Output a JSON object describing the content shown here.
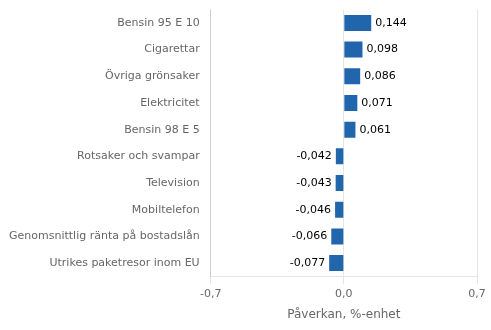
{
  "chart_data": {
    "type": "bar",
    "orientation": "horizontal",
    "categories": [
      "Utrikes paketresor inom EU",
      "Genomsnittlig ränta på bostadslån",
      "Mobiltelefon",
      "Television",
      "Rotsaker och svampar",
      "Bensin 98 E 5",
      "Elektricitet",
      "Övriga grönsaker",
      "Cigarettar",
      "Bensin 95 E 10"
    ],
    "values": [
      -0.077,
      -0.066,
      -0.046,
      -0.043,
      -0.042,
      0.061,
      0.071,
      0.086,
      0.098,
      0.144
    ],
    "value_labels": [
      "-0,077",
      "-0,066",
      "-0,046",
      "-0,043",
      "-0,042",
      "0,061",
      "0,071",
      "0,086",
      "0,098",
      "0,144"
    ],
    "data_labels": true,
    "color": "#2166ac",
    "xlabel": "Påverkan, %-enhet",
    "xlim": [
      -0.7,
      0.7
    ],
    "xticks": [
      {
        "value": -0.7,
        "label": "-0,7"
      },
      {
        "value": 0.0,
        "label": "0,0"
      },
      {
        "value": 0.7,
        "label": "0,7"
      }
    ],
    "grid": true
  }
}
